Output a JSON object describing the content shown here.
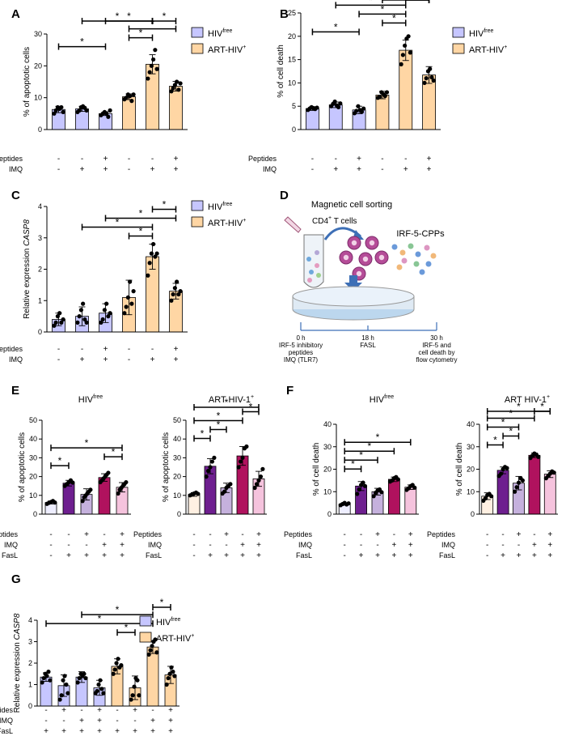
{
  "colors": {
    "hiv_free": "#c6c6ff",
    "art_hiv": "#ffd6a4",
    "dark_purple": "#6e1f8f",
    "magenta": "#b0125e",
    "light_purple": "#c5b1dd",
    "light_pink": "#f5c3dd",
    "free_light": "#eeeeff",
    "art_light": "#fff0e2"
  },
  "legend": {
    "hiv_free": "HIV",
    "hiv_free_sup": "free",
    "art_hiv": "ART-HIV",
    "art_hiv_sup": "+"
  },
  "panel_D": {
    "label": "D",
    "sorting": "Magnetic cell sorting",
    "cells": "CD4",
    "cells_sup": "+",
    "cells_suffix": " T cells",
    "cpp": "IRF-5-CPPs",
    "t0": "0 h",
    "t0_line1": "IRF-5 inhibitory",
    "t0_line2": "peptides",
    "t0_line3": "IMQ (TLR7)",
    "t18": "18 h",
    "t18_line1": "FASL",
    "t30": "30 h",
    "t30_line1": "IRF-5 and",
    "t30_line2": "cell death by",
    "t30_line3": "flow cytometry"
  },
  "chart_data": [
    {
      "id": "A",
      "type": "bar",
      "ylabel": "% of apoptotic cells",
      "ylim": [
        0,
        30
      ],
      "yticks": [
        0,
        10,
        20,
        30
      ],
      "legend": true,
      "groups": [
        "hiv_free",
        "hiv_free",
        "hiv_free",
        "art_hiv",
        "art_hiv",
        "art_hiv"
      ],
      "values": [
        6.3,
        6.5,
        5.0,
        10.3,
        20.5,
        13.6
      ],
      "errors": [
        1.0,
        0.8,
        0.6,
        0.9,
        3.0,
        1.5
      ],
      "points": [
        [
          5,
          6,
          7,
          6.5,
          7,
          5.5
        ],
        [
          5.5,
          6,
          7,
          7.3,
          6.8,
          6
        ],
        [
          4.5,
          5,
          5.5,
          5,
          4,
          6
        ],
        [
          9.5,
          10,
          11,
          10.5,
          9,
          11
        ],
        [
          16,
          18,
          20,
          22,
          25,
          19
        ],
        [
          12,
          13,
          14,
          15,
          12.5,
          14.5
        ]
      ],
      "conditions": [
        {
          "label": "Peptides",
          "signs": [
            "-",
            "-",
            "+",
            "-",
            "-",
            "+"
          ]
        },
        {
          "label": "IMQ",
          "signs": [
            "-",
            "+",
            "+",
            "-",
            "+",
            "+"
          ]
        }
      ],
      "brackets": [
        [
          0,
          2,
          "*"
        ],
        [
          3,
          4,
          "*"
        ],
        [
          3,
          5,
          "*"
        ],
        [
          1,
          4,
          "*"
        ],
        [
          2,
          4,
          "*"
        ],
        [
          4,
          5,
          "*"
        ]
      ]
    },
    {
      "id": "B",
      "type": "bar",
      "ylabel": "% of cell death",
      "ylim": [
        0,
        25
      ],
      "yticks": [
        0,
        5,
        10,
        15,
        20,
        25
      ],
      "legend": true,
      "groups": [
        "hiv_free",
        "hiv_free",
        "hiv_free",
        "art_hiv",
        "art_hiv",
        "art_hiv"
      ],
      "values": [
        4.5,
        5.3,
        4.2,
        7.4,
        17.0,
        11.7
      ],
      "errors": [
        0.4,
        0.6,
        0.8,
        0.8,
        2.2,
        1.8
      ],
      "points": [
        [
          4.2,
          4.5,
          4.8,
          4.6,
          4.4,
          4.7
        ],
        [
          5,
          5.5,
          6,
          5.2,
          4.8,
          5.6
        ],
        [
          3.5,
          4,
          5,
          4.2,
          3.8,
          4.5
        ],
        [
          6.8,
          7,
          8,
          7.6,
          7.2,
          8
        ],
        [
          14,
          16,
          18,
          19.5,
          20,
          16.5
        ],
        [
          10,
          11,
          12.5,
          13,
          11.2,
          10.5
        ]
      ],
      "conditions": [
        {
          "label": "Peptides",
          "signs": [
            "-",
            "-",
            "+",
            "-",
            "-",
            "+"
          ]
        },
        {
          "label": "IMQ",
          "signs": [
            "-",
            "+",
            "+",
            "-",
            "+",
            "+"
          ]
        }
      ],
      "brackets": [
        [
          0,
          2,
          "*"
        ],
        [
          3,
          4,
          "*"
        ],
        [
          2,
          4,
          "*"
        ],
        [
          1,
          4,
          "*"
        ],
        [
          4,
          5,
          "*"
        ],
        [
          3,
          5,
          "*"
        ],
        [
          4,
          5,
          "*"
        ]
      ]
    },
    {
      "id": "C",
      "type": "bar",
      "ylabel": "Relative expression CASP8",
      "ylabel_plain": "Relative expression ",
      "ylabel_italic": "CASP8",
      "ylim": [
        0,
        4
      ],
      "yticks": [
        0,
        1,
        2,
        3,
        4
      ],
      "legend": true,
      "groups": [
        "hiv_free",
        "hiv_free",
        "hiv_free",
        "art_hiv",
        "art_hiv",
        "art_hiv"
      ],
      "values": [
        0.4,
        0.5,
        0.6,
        1.1,
        2.4,
        1.3
      ],
      "errors": [
        0.2,
        0.3,
        0.3,
        0.55,
        0.4,
        0.25
      ],
      "points": [
        [
          0.2,
          0.3,
          0.5,
          0.6,
          0.3,
          0.4
        ],
        [
          0.3,
          0.5,
          0.7,
          0.9,
          0.4,
          0.3
        ],
        [
          0.3,
          0.4,
          0.7,
          0.9,
          0.5,
          0.6
        ],
        [
          0.6,
          0.8,
          1.1,
          1.6,
          0.9,
          1.3
        ],
        [
          1.8,
          2.2,
          2.5,
          2.8,
          2.4,
          2.5
        ],
        [
          1.0,
          1.2,
          1.4,
          1.6,
          1.2,
          1.3
        ]
      ],
      "conditions": [
        {
          "label": "Peptides",
          "signs": [
            "-",
            "-",
            "+",
            "-",
            "-",
            "+"
          ]
        },
        {
          "label": "IMQ",
          "signs": [
            "-",
            "+",
            "+",
            "-",
            "+",
            "+"
          ]
        }
      ],
      "brackets": [
        [
          3,
          4,
          "*"
        ],
        [
          1,
          4,
          "*"
        ],
        [
          2,
          5,
          "*"
        ],
        [
          4,
          5,
          "*"
        ]
      ]
    },
    {
      "id": "E",
      "type": "bar",
      "title": "HIV",
      "title_sup": "free",
      "ylabel": "% of apoptotic cells",
      "ylim": [
        0,
        50
      ],
      "yticks": [
        0,
        10,
        20,
        30,
        40,
        50
      ],
      "groups": [
        "free_light",
        "dark_purple",
        "light_purple",
        "magenta",
        "light_pink"
      ],
      "values": [
        6.2,
        16.5,
        10.5,
        19.5,
        14.3
      ],
      "errors": [
        0.8,
        1.5,
        3.0,
        2.0,
        2.5
      ],
      "points": [
        [
          5.5,
          6,
          6.5,
          7,
          6.2
        ],
        [
          15,
          16,
          17,
          18,
          16.8
        ],
        [
          7,
          9,
          10,
          11,
          12,
          13
        ],
        [
          17,
          18,
          19,
          20,
          21,
          22
        ],
        [
          11,
          13,
          14,
          15,
          16,
          17
        ]
      ],
      "conditions": [
        {
          "label": "Peptides",
          "signs": [
            "-",
            "-",
            "+",
            "-",
            "+"
          ]
        },
        {
          "label": "IMQ",
          "signs": [
            "-",
            "-",
            "-",
            "+",
            "+"
          ]
        },
        {
          "label": "FasL",
          "signs": [
            "-",
            "+",
            "+",
            "+",
            "+"
          ]
        }
      ],
      "brackets": [
        [
          0,
          1,
          "*"
        ],
        [
          3,
          4,
          "*"
        ],
        [
          0,
          4,
          "*"
        ]
      ]
    },
    {
      "id": "E2",
      "type": "bar",
      "title": "ART HIV-1",
      "title_sup": "+",
      "ylabel": "% of apoptotic cells",
      "ylim": [
        0,
        50
      ],
      "yticks": [
        0,
        10,
        20,
        30,
        40,
        50
      ],
      "groups": [
        "art_light",
        "dark_purple",
        "light_purple",
        "magenta",
        "light_pink"
      ],
      "values": [
        10.5,
        25.5,
        14.0,
        31.0,
        18.8
      ],
      "errors": [
        1.0,
        4.0,
        2.5,
        5.0,
        4.0
      ],
      "points": [
        [
          10,
          10.5,
          11,
          11.5,
          10.8
        ],
        [
          20,
          23,
          25,
          28,
          30
        ],
        [
          11,
          12,
          14,
          15,
          16
        ],
        [
          25,
          28,
          30,
          35,
          36
        ],
        [
          14,
          16,
          18,
          20,
          24
        ]
      ],
      "conditions": [
        {
          "label": "Peptides",
          "signs": [
            "-",
            "-",
            "+",
            "-",
            "+"
          ]
        },
        {
          "label": "IMQ",
          "signs": [
            "-",
            "-",
            "-",
            "+",
            "+"
          ]
        },
        {
          "label": "FasL",
          "signs": [
            "-",
            "+",
            "+",
            "+",
            "+"
          ]
        }
      ],
      "brackets": [
        [
          0,
          1,
          "*"
        ],
        [
          1,
          2,
          "*"
        ],
        [
          0,
          3,
          "*"
        ],
        [
          3,
          4,
          "*"
        ],
        [
          0,
          4,
          "*"
        ]
      ]
    },
    {
      "id": "F",
      "type": "bar",
      "title": "HIV",
      "title_sup": "free",
      "ylabel": "% of cell death",
      "ylim": [
        0,
        40
      ],
      "yticks": [
        0,
        10,
        20,
        30,
        40
      ],
      "groups": [
        "free_light",
        "dark_purple",
        "light_purple",
        "magenta",
        "light_pink"
      ],
      "values": [
        4.5,
        12.5,
        10.0,
        15.5,
        12.0
      ],
      "errors": [
        0.5,
        2.0,
        1.5,
        1.0,
        1.0
      ],
      "points": [
        [
          4,
          4.5,
          5,
          4.3,
          4.8
        ],
        [
          9,
          11,
          13,
          14,
          12.5
        ],
        [
          8,
          9.5,
          10.5,
          11,
          9.8
        ],
        [
          14.5,
          15,
          16,
          16.5,
          15.5
        ],
        [
          10.8,
          11.5,
          12.5,
          13,
          11.8
        ]
      ],
      "conditions": [
        {
          "label": "Peptides",
          "signs": [
            "-",
            "-",
            "+",
            "-",
            "+"
          ]
        },
        {
          "label": "IMQ",
          "signs": [
            "-",
            "-",
            "-",
            "+",
            "+"
          ]
        },
        {
          "label": "FasL",
          "signs": [
            "-",
            "+",
            "+",
            "+",
            "+"
          ]
        }
      ],
      "brackets": [
        [
          0,
          1,
          "*"
        ],
        [
          0,
          2,
          "*"
        ],
        [
          0,
          3,
          "*"
        ],
        [
          0,
          4,
          "*"
        ]
      ]
    },
    {
      "id": "F2",
      "type": "bar",
      "title": "ART HIV-1",
      "title_sup": "+",
      "ylabel": "% of cell death",
      "ylim": [
        0,
        40
      ],
      "yticks": [
        0,
        10,
        20,
        30,
        40
      ],
      "groups": [
        "art_light",
        "dark_purple",
        "light_purple",
        "magenta",
        "light_pink"
      ],
      "values": [
        8.0,
        19.5,
        13.8,
        26.2,
        17.8
      ],
      "errors": [
        1.5,
        1.5,
        3.0,
        1.0,
        1.5
      ],
      "points": [
        [
          6,
          7,
          8.5,
          9,
          8
        ],
        [
          17,
          18,
          20,
          21,
          20.5
        ],
        [
          10,
          12,
          14,
          16,
          15
        ],
        [
          25,
          26,
          27,
          26.5,
          25.5
        ],
        [
          16,
          17,
          18,
          19,
          18.5
        ]
      ],
      "conditions": [
        {
          "label": "Peptides",
          "signs": [
            "-",
            "-",
            "+",
            "-",
            "+"
          ]
        },
        {
          "label": "IMQ",
          "signs": [
            "-",
            "-",
            "-",
            "+",
            "+"
          ]
        },
        {
          "label": "FasL",
          "signs": [
            "-",
            "+",
            "+",
            "+",
            "+"
          ]
        }
      ],
      "brackets": [
        [
          0,
          1,
          "*"
        ],
        [
          1,
          2,
          "*"
        ],
        [
          0,
          2,
          "*"
        ],
        [
          0,
          3,
          "*"
        ],
        [
          0,
          4,
          "*"
        ],
        [
          3,
          4,
          "*"
        ]
      ]
    },
    {
      "id": "G",
      "type": "bar",
      "ylabel": "Relative expression CASP8",
      "ylabel_plain": "Relative expression ",
      "ylabel_italic": "CASP8",
      "ylim": [
        0,
        4
      ],
      "yticks": [
        0,
        1,
        2,
        3,
        4
      ],
      "legend": true,
      "groups": [
        "hiv_free",
        "hiv_free",
        "hiv_free",
        "hiv_free",
        "art_hiv",
        "art_hiv",
        "art_hiv",
        "art_hiv"
      ],
      "values": [
        1.35,
        0.95,
        1.35,
        0.85,
        1.85,
        0.85,
        2.75,
        1.45
      ],
      "errors": [
        0.2,
        0.5,
        0.25,
        0.35,
        0.35,
        0.55,
        0.3,
        0.4
      ],
      "points": [
        [
          1.1,
          1.3,
          1.5,
          1.4,
          1.6,
          1.2
        ],
        [
          0.3,
          0.5,
          1.2,
          1.4,
          1.0,
          0.6
        ],
        [
          1.1,
          1.3,
          1.5,
          1.4,
          1.5,
          1.3
        ],
        [
          0.6,
          0.7,
          1.0,
          1.2,
          0.8,
          0.6
        ],
        [
          1.5,
          1.7,
          2.0,
          2.2,
          1.8,
          1.9
        ],
        [
          0.3,
          0.5,
          0.9,
          1.3,
          1.2,
          0.5
        ],
        [
          2.4,
          2.6,
          2.8,
          3.0,
          3.1,
          2.5
        ],
        [
          1.0,
          1.3,
          1.5,
          1.8,
          1.6,
          1.4
        ]
      ],
      "conditions": [
        {
          "label": "Peptides",
          "signs": [
            "-",
            "+",
            "-",
            "+",
            "-",
            "+",
            "-",
            "+"
          ]
        },
        {
          "label": "IMQ",
          "signs": [
            "-",
            "-",
            "+",
            "+",
            "-",
            "-",
            "+",
            "+"
          ]
        },
        {
          "label": "FasL",
          "signs": [
            "+",
            "+",
            "+",
            "+",
            "+",
            "+",
            "+",
            "+"
          ]
        }
      ],
      "brackets": [
        [
          4,
          5,
          "*"
        ],
        [
          0,
          6,
          "*"
        ],
        [
          2,
          6,
          "*"
        ],
        [
          6,
          7,
          "*"
        ]
      ]
    }
  ]
}
